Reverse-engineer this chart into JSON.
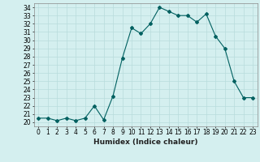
{
  "x": [
    0,
    1,
    2,
    3,
    4,
    5,
    6,
    7,
    8,
    9,
    10,
    11,
    12,
    13,
    14,
    15,
    16,
    17,
    18,
    19,
    20,
    21,
    22,
    23
  ],
  "y": [
    20.5,
    20.5,
    20.2,
    20.5,
    20.2,
    20.5,
    22.0,
    20.3,
    23.2,
    27.8,
    31.5,
    30.8,
    32.0,
    34.0,
    33.5,
    33.0,
    33.0,
    32.2,
    33.2,
    30.5,
    29.0,
    25.0,
    23.0,
    23.0
  ],
  "line_color": "#006060",
  "marker": "D",
  "marker_size": 2,
  "bg_color": "#d4efef",
  "grid_color": "#b8dcdc",
  "xlabel": "Humidex (Indice chaleur)",
  "xlim": [
    -0.5,
    23.5
  ],
  "ylim": [
    19.5,
    34.5
  ],
  "yticks": [
    20,
    21,
    22,
    23,
    24,
    25,
    26,
    27,
    28,
    29,
    30,
    31,
    32,
    33,
    34
  ],
  "xticks": [
    0,
    1,
    2,
    3,
    4,
    5,
    6,
    7,
    8,
    9,
    10,
    11,
    12,
    13,
    14,
    15,
    16,
    17,
    18,
    19,
    20,
    21,
    22,
    23
  ],
  "tick_fontsize": 5.5,
  "label_fontsize": 6.5
}
